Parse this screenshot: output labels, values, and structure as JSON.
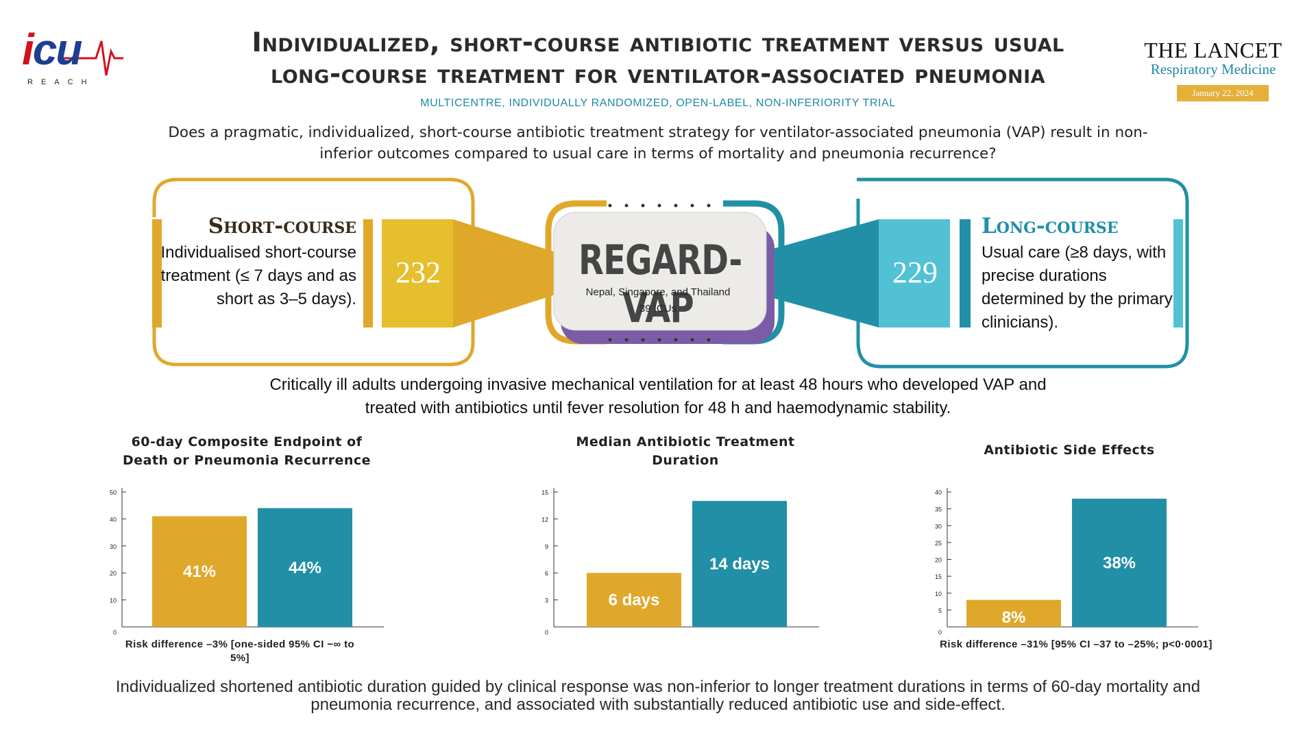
{
  "logo": {
    "text_i": "i",
    "text_cu": "cu",
    "reach": "REACH"
  },
  "header": {
    "title_line1": "Individualized, short-course antibiotic treatment versus usual",
    "title_line2": "long-course treatment for ventilator-associated pneumonia",
    "subtitle": "MULTICENTRE, INDIVIDUALLY RANDOMIZED, OPEN-LABEL, NON-INFERIORITY TRIAL",
    "question": "Does a pragmatic, individualized, short-course antibiotic treatment strategy for ventilator-associated pneumonia (VAP) result in non-inferior outcomes compared to usual care in terms of mortality and pneumonia recurrence?"
  },
  "journal": {
    "title": "THE LANCET",
    "subtitle": "Respiratory Medicine",
    "date": "January 22, 2024"
  },
  "trial": {
    "name": "REGARD-VAP",
    "countries": "Nepal, Singapore, and Thailand",
    "sites": "39 ICUs"
  },
  "arms": {
    "short": {
      "heading": "Short-course",
      "n": "232",
      "description": "Individualised short-course treatment (≤ 7 days and as short as 3–5 days)."
    },
    "long": {
      "heading": "Long-course",
      "n": "229",
      "description": "Usual care (≥8 days, with precise durations determined by the primary clinicians)."
    }
  },
  "population": "Critically ill adults undergoing invasive mechanical ventilation for at least 48 hours who developed VAP and treated with antibiotics until fever resolution for 48 h and haemodynamic stability.",
  "colors": {
    "short": "#e0a82a",
    "long": "#2190a6",
    "long_light": "#52c1d4",
    "short_light": "#e6bf2e"
  },
  "chart_data": [
    {
      "type": "bar",
      "title": "60-day Composite Endpoint of Death or Pneumonia Recurrence",
      "categories": [
        "Short-course",
        "Long-course"
      ],
      "values": [
        41,
        44
      ],
      "data_labels": [
        "41%",
        "44%"
      ],
      "ylim": [
        0,
        50
      ],
      "yticks": [
        "0",
        "10",
        "20",
        "30",
        "40",
        "50"
      ],
      "note": "Risk difference –3% [one-sided 95% CI −∞ to 5%]"
    },
    {
      "type": "bar",
      "title": "Median Antibiotic Treatment Duration",
      "categories": [
        "Short-course",
        "Long-course"
      ],
      "values": [
        6,
        14
      ],
      "data_labels": [
        "6 days",
        "14 days"
      ],
      "ylim": [
        0,
        15
      ],
      "yticks": [
        "0",
        "3",
        "6",
        "9",
        "12",
        "15"
      ],
      "note": ""
    },
    {
      "type": "bar",
      "title": "Antibiotic Side Effects",
      "categories": [
        "Short-course",
        "Long-course"
      ],
      "values": [
        8,
        38
      ],
      "data_labels": [
        "8%",
        "38%"
      ],
      "ylim": [
        0,
        40
      ],
      "yticks": [
        "0",
        "5",
        "10",
        "15",
        "20",
        "25",
        "30",
        "35",
        "40"
      ],
      "note": "Risk difference –31% [95% CI –37 to –25%; p<0·0001]"
    }
  ],
  "conclusion": "Individualized shortened antibiotic duration guided by clinical response was non-inferior to longer treatment durations in terms of 60-day mortality and pneumonia recurrence, and associated with substantially reduced antibiotic use and side-effect."
}
